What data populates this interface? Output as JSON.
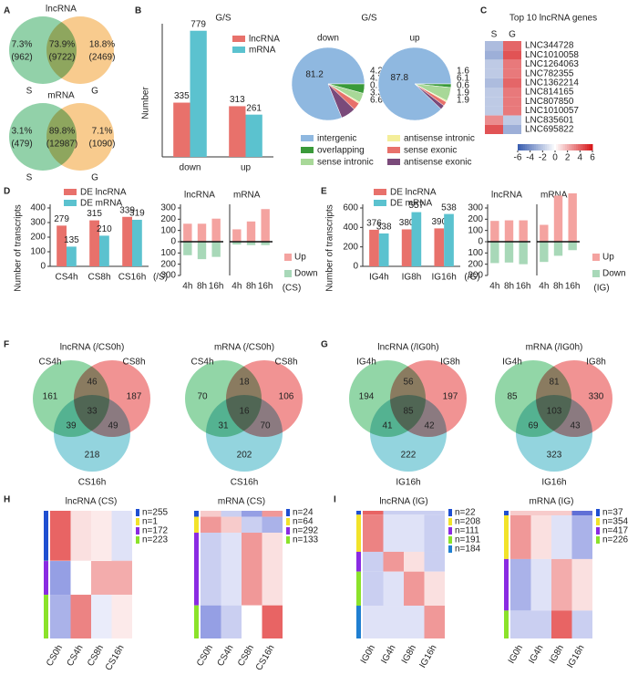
{
  "chart_data": [
    {
      "type": "venn",
      "panel": "A",
      "title": "lncRNA",
      "sets": [
        "S",
        "G"
      ],
      "values": [
        962,
        9722,
        2469
      ],
      "value_labels": [
        "(962)",
        "(9722)",
        "(2469)"
      ],
      "percents": [
        7.3,
        73.9,
        18.8
      ],
      "percent_labels": [
        "7.3%",
        "73.9%",
        "18.8%"
      ],
      "colors": [
        "#7fc99a",
        "#f7c27a"
      ]
    },
    {
      "type": "venn",
      "title": "mRNA",
      "sets": [
        "S",
        "G"
      ],
      "values": [
        479,
        12987,
        1090
      ],
      "value_labels": [
        "(479)",
        "(12987)",
        "(1090)"
      ],
      "percents": [
        3.1,
        89.8,
        7.1
      ],
      "percent_labels": [
        "3.1%",
        "89.8%",
        "7.1%"
      ],
      "colors": [
        "#7fc99a",
        "#f7c27a"
      ]
    },
    {
      "type": "bar",
      "panel": "B",
      "title": "G/S",
      "ylabel": "Number",
      "categories": [
        "down",
        "up"
      ],
      "series": [
        {
          "name": "lncRNA",
          "color": "#e8716b",
          "values": [
            335,
            313
          ]
        },
        {
          "name": "mRNA",
          "color": "#5bc2cf",
          "values": [
            779,
            261
          ]
        }
      ],
      "ylim": [
        0,
        800
      ]
    },
    {
      "type": "pie",
      "title": "G/S",
      "categories": [
        "intergenic",
        "overlapping",
        "sense intronic",
        "antisense intronic",
        "sense exonic",
        "antisense exonic"
      ],
      "colors": [
        "#8fb8e0",
        "#3a9a3a",
        "#a8d898",
        "#f4ee9a",
        "#e8716b",
        "#7a4a7a"
      ],
      "series": [
        {
          "name": "down",
          "values": [
            81.2,
            4.2,
            4.2,
            0.6,
            3.3,
            6.6
          ]
        },
        {
          "name": "up",
          "values": [
            87.8,
            1.6,
            6.1,
            0.6,
            1.9,
            1.9
          ]
        }
      ]
    },
    {
      "type": "heatmap",
      "panel": "C",
      "title": "Top 10 lncRNA genes",
      "columns": [
        "S",
        "G"
      ],
      "rows": [
        "LNC344728",
        "LNC1010058",
        "LNC1264063",
        "LNC782355",
        "LNC1362214",
        "LNC814165",
        "LNC807850",
        "LNC1010057",
        "LNC835601",
        "LNC695822"
      ],
      "values": [
        [
          -2.5,
          4
        ],
        [
          -3,
          4.5
        ],
        [
          -2,
          3.5
        ],
        [
          -2,
          3.5
        ],
        [
          -2.5,
          4
        ],
        [
          -2,
          3.5
        ],
        [
          -2,
          3.5
        ],
        [
          -2,
          3.5
        ],
        [
          3,
          -2
        ],
        [
          4.5,
          -3
        ]
      ],
      "zlim": [
        -6,
        6
      ],
      "zticks": [
        -6,
        -4,
        -2,
        0,
        2,
        4,
        6
      ],
      "colorscale": [
        "#3b5fb0",
        "#ffffff",
        "#d7191c"
      ]
    },
    {
      "type": "bar",
      "panel": "D",
      "ylabel": "Number of transcripts",
      "xlabel": "(/S)",
      "categories": [
        "CS4h",
        "CS8h",
        "CS16h"
      ],
      "series": [
        {
          "name": "DE lncRNA",
          "color": "#e8716b",
          "values": [
            279,
            315,
            339
          ]
        },
        {
          "name": "DE mRNA",
          "color": "#5bc2cf",
          "values": [
            135,
            210,
            319
          ]
        }
      ],
      "ylim": [
        0,
        400
      ],
      "yticks": [
        0,
        100,
        200,
        300,
        400
      ]
    },
    {
      "type": "diverging",
      "xlabel": "(CS)",
      "categories": [
        "4h",
        "8h",
        "16h"
      ],
      "series": [
        {
          "name": "Up",
          "color": "#f4a3a0"
        },
        {
          "name": "Down",
          "color": "#a8d8b8"
        }
      ],
      "facets": [
        {
          "title": "lncRNA",
          "values": [
            [
              160,
              160,
              205
            ],
            [
              -120,
              -155,
              -135
            ]
          ]
        },
        {
          "title": "mRNA",
          "values": [
            [
              110,
              180,
              290
            ],
            [
              -25,
              -30,
              -30
            ]
          ]
        }
      ],
      "ylim": [
        -300,
        300
      ],
      "yticks": [
        {
          "value": -300,
          "label": "300"
        },
        {
          "value": -200,
          "label": "200"
        },
        {
          "value": -100,
          "label": "100"
        },
        0,
        100,
        200,
        300
      ]
    },
    {
      "type": "bar",
      "panel": "E",
      "ylabel": "Number of transcripts",
      "xlabel": "(/G)",
      "categories": [
        "IG4h",
        "IG8h",
        "IG16h"
      ],
      "series": [
        {
          "name": "DE lncRNA",
          "color": "#e8716b",
          "values": [
            376,
            380,
            390
          ]
        },
        {
          "name": "DE mRNA",
          "color": "#5bc2cf",
          "values": [
            338,
            557,
            538
          ]
        }
      ],
      "ylim": [
        0,
        600
      ],
      "yticks": [
        0,
        200,
        400,
        600
      ]
    },
    {
      "type": "diverging",
      "xlabel": "(IG)",
      "categories": [
        "4h",
        "8h",
        "16h"
      ],
      "series": [
        {
          "name": "Up",
          "color": "#f4a3a0"
        },
        {
          "name": "Down",
          "color": "#a8d8b8"
        }
      ],
      "facets": [
        {
          "title": "lncRNA",
          "values": [
            [
              185,
              190,
              190
            ],
            [
              -190,
              -185,
              -200
            ]
          ]
        },
        {
          "title": "mRNA",
          "values": [
            [
              150,
              410,
              430
            ],
            [
              -180,
              -125,
              -75
            ]
          ]
        }
      ],
      "ylim": [
        -300,
        300
      ],
      "yticks": [
        {
          "value": -300,
          "label": "300"
        },
        {
          "value": -200,
          "label": "200"
        },
        {
          "value": -100,
          "label": "100"
        },
        0,
        100,
        200,
        300
      ]
    },
    {
      "type": "venn",
      "panel": "F",
      "title": "lncRNA (/CS0h)",
      "sets": [
        "CS4h",
        "CS8h",
        "CS16h"
      ],
      "values": [
        161,
        187,
        218,
        46,
        39,
        49,
        33
      ],
      "colors": [
        "#7fcf98",
        "#ef8080",
        "#80cdd8"
      ]
    },
    {
      "type": "venn",
      "title": "mRNA (/CS0h)",
      "sets": [
        "CS4h",
        "CS8h",
        "CS16h"
      ],
      "values": [
        70,
        106,
        202,
        18,
        31,
        70,
        16
      ],
      "colors": [
        "#7fcf98",
        "#ef8080",
        "#80cdd8"
      ]
    },
    {
      "type": "venn",
      "panel": "G",
      "title": "lncRNA (/IG0h)",
      "sets": [
        "IG4h",
        "IG8h",
        "IG16h"
      ],
      "values": [
        194,
        197,
        222,
        56,
        41,
        42,
        85
      ],
      "colors": [
        "#7fcf98",
        "#ef8080",
        "#80cdd8"
      ]
    },
    {
      "type": "venn",
      "title": "mRNA (/IG0h)",
      "sets": [
        "IG4h",
        "IG8h",
        "IG16h"
      ],
      "values": [
        85,
        330,
        323,
        81,
        69,
        43,
        103
      ],
      "colors": [
        "#7fcf98",
        "#ef8080",
        "#80cdd8"
      ]
    },
    {
      "type": "clustermap",
      "panel": "H",
      "title": "lncRNA (CS)",
      "columns": [
        "CS0h",
        "CS4h",
        "CS8h",
        "CS16h"
      ],
      "zlim": [
        -2,
        2
      ],
      "colorscale": [
        "#2b3fc8",
        "#ffffff",
        "#e03030"
      ],
      "clusters": [
        {
          "size": 255,
          "label": "n=255",
          "color": "#1f4fd1",
          "values": [
            1.5,
            0.3,
            0.2,
            -0.3
          ]
        },
        {
          "size": 1,
          "label": "n=1",
          "color": "#f2e32a",
          "values": [
            0,
            0,
            0,
            1
          ]
        },
        {
          "size": 172,
          "label": "n=172",
          "color": "#8a2be2",
          "values": [
            -1,
            0,
            0.8,
            0.8
          ]
        },
        {
          "size": 223,
          "label": "n=223",
          "color": "#8be22a",
          "values": [
            -0.8,
            1.2,
            -0.2,
            0.2
          ]
        }
      ]
    },
    {
      "type": "clustermap",
      "title": "mRNA (CS)",
      "columns": [
        "CS0h",
        "CS4h",
        "CS8h",
        "CS16h"
      ],
      "zlim": [
        -2,
        2
      ],
      "colorscale": [
        "#2b3fc8",
        "#ffffff",
        "#e03030"
      ],
      "clusters": [
        {
          "size": 24,
          "label": "n=24",
          "color": "#1f4fd1",
          "values": [
            0.5,
            -0.5,
            -1,
            1
          ]
        },
        {
          "size": 64,
          "label": "n=64",
          "color": "#f2e32a",
          "values": [
            1,
            0.5,
            -0.5,
            -0.8
          ]
        },
        {
          "size": 292,
          "label": "n=292",
          "color": "#8a2be2",
          "values": [
            -0.5,
            -0.3,
            1,
            0.3
          ]
        },
        {
          "size": 133,
          "label": "n=133",
          "color": "#8be22a",
          "values": [
            -1,
            -0.5,
            0,
            1.5
          ]
        }
      ]
    },
    {
      "type": "clustermap",
      "panel": "I",
      "title": "lncRNA (IG)",
      "columns": [
        "IG0h",
        "IG4h",
        "IG8h",
        "IG16h"
      ],
      "zlim": [
        -2,
        2
      ],
      "colorscale": [
        "#2b3fc8",
        "#ffffff",
        "#e03030"
      ],
      "clusters": [
        {
          "size": 22,
          "label": "n=22",
          "color": "#1f4fd1",
          "values": [
            1.5,
            -0.5,
            -0.5,
            -0.5
          ]
        },
        {
          "size": 208,
          "label": "n=208",
          "color": "#f2e32a",
          "values": [
            1.2,
            -0.3,
            -0.3,
            -0.5
          ]
        },
        {
          "size": 111,
          "label": "n=111",
          "color": "#8a2be2",
          "values": [
            -0.5,
            1,
            0.3,
            -0.5
          ]
        },
        {
          "size": 191,
          "label": "n=191",
          "color": "#8be22a",
          "values": [
            -0.5,
            -0.3,
            1,
            0.3
          ]
        },
        {
          "size": 184,
          "label": "n=184",
          "color": "#1f7fd1",
          "values": [
            -0.3,
            -0.3,
            -0.3,
            1
          ]
        }
      ]
    },
    {
      "type": "clustermap",
      "title": "mRNA (IG)",
      "columns": [
        "IG0h",
        "IG4h",
        "IG8h",
        "IG16h"
      ],
      "zlim": [
        -2,
        2
      ],
      "colorscale": [
        "#2b3fc8",
        "#ffffff",
        "#e03030"
      ],
      "clusters": [
        {
          "size": 37,
          "label": "n=37",
          "color": "#1f4fd1",
          "values": [
            0.5,
            0.5,
            0.5,
            -1.5
          ]
        },
        {
          "size": 354,
          "label": "n=354",
          "color": "#f2e32a",
          "values": [
            1,
            0.3,
            -0.3,
            -0.8
          ]
        },
        {
          "size": 417,
          "label": "n=417",
          "color": "#8a2be2",
          "values": [
            -0.8,
            -0.3,
            0.8,
            0.3
          ]
        },
        {
          "size": 226,
          "label": "n=226",
          "color": "#8be22a",
          "values": [
            -0.5,
            -0.5,
            1.5,
            -0.5
          ]
        }
      ]
    }
  ]
}
